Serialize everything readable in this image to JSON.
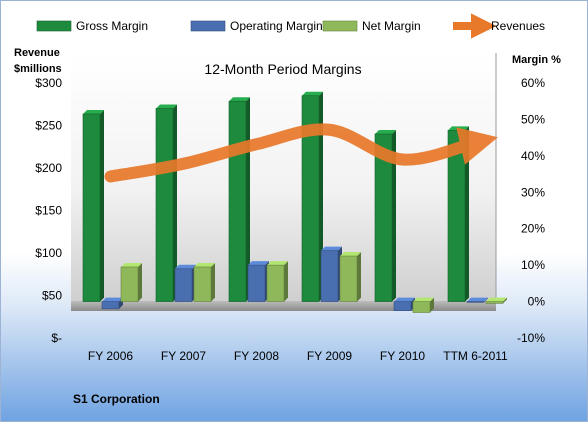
{
  "chart_data": {
    "type": "bar",
    "title": "12-Month Period Margins",
    "left_axis_title": [
      "Revenue",
      "$millions"
    ],
    "right_axis_title": "Margin %",
    "left_ticks": [
      "$-",
      "$50",
      "$100",
      "$150",
      "$200",
      "$250",
      "$300"
    ],
    "right_ticks": [
      "-10%",
      "0%",
      "10%",
      "20%",
      "30%",
      "40%",
      "50%",
      "60%"
    ],
    "left_range": [
      0,
      300
    ],
    "right_range": [
      -10,
      60
    ],
    "categories": [
      "FY 2006",
      "FY 2007",
      "FY 2008",
      "FY 2009",
      "FY 2010",
      "TTM 6-2011"
    ],
    "series": [
      {
        "name": "Gross Margin",
        "type": "bar",
        "axis": "right",
        "color": "#1e8a3e",
        "values": [
          51.5,
          53,
          55,
          56.5,
          46,
          47
        ]
      },
      {
        "name": "Operating Margin",
        "type": "bar",
        "axis": "right",
        "color": "#4a6fb0",
        "values": [
          -2,
          9,
          10,
          14,
          -2.5,
          0
        ]
      },
      {
        "name": "Net Margin",
        "type": "bar",
        "axis": "right",
        "color": "#8fb85a",
        "values": [
          9.5,
          9.5,
          10,
          12.5,
          -3,
          -0.5
        ]
      },
      {
        "name": "Revenues",
        "type": "line",
        "axis": "left",
        "color": "#e8782a",
        "values": [
          190,
          205,
          228,
          245,
          210,
          230
        ]
      }
    ],
    "legend_position": "top",
    "gridlines": false,
    "footer": "S1 Corporation"
  }
}
